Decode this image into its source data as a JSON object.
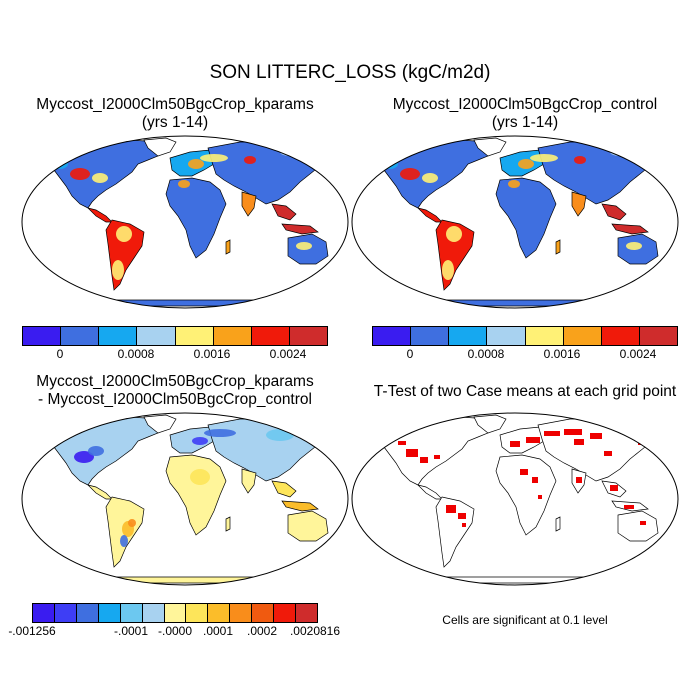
{
  "main_title": "SON LITTERC_LOSS (kgC/m2d)",
  "panels": [
    {
      "title_line1": "Myccost_I2000Clm50BgcCrop_kparams",
      "title_line2": "(yrs 1-14)",
      "ocean_color": "#ffffff",
      "antarctica_color": "#3f6fe0"
    },
    {
      "title_line1": "Myccost_I2000Clm50BgcCrop_control",
      "title_line2": "(yrs 1-14)",
      "ocean_color": "#ffffff",
      "antarctica_color": "#3f6fe0"
    },
    {
      "title_line1": "Myccost_I2000Clm50BgcCrop_kparams",
      "title_line2": "- Myccost_I2000Clm50BgcCrop_control",
      "ocean_color": "#ffffff",
      "antarctica_color": "#fff59a"
    },
    {
      "title_line1": "T-Test of two Case means at each grid point",
      "title_line2": "",
      "ocean_color": "#ffffff",
      "antarctica_color": "#ffffff"
    }
  ],
  "colorbar_abs": {
    "colors": [
      "#3a1cf0",
      "#3f6fe0",
      "#16a8f0",
      "#a8d2f0",
      "#fff176",
      "#f9a21b",
      "#f01a0a",
      "#cf2c2c"
    ],
    "labels": [
      "0",
      "0.0008",
      "0.0016",
      "0.0024"
    ]
  },
  "colorbar_diff": {
    "colors": [
      "#3a1cf0",
      "#3e3ef5",
      "#3f6fe0",
      "#16a8f0",
      "#6cc8f0",
      "#a8d2f0",
      "#fff59a",
      "#fde55a",
      "#fbbd2a",
      "#f98d1b",
      "#f05a10",
      "#f01a0a",
      "#cf2c2c"
    ],
    "labels": [
      "-.001256",
      "-.0001",
      "-.0000",
      ".0001",
      ".0002",
      ".0020816"
    ]
  },
  "significance_note": "Cells are significant at 0.1 level",
  "significant_color": "#ee0000"
}
